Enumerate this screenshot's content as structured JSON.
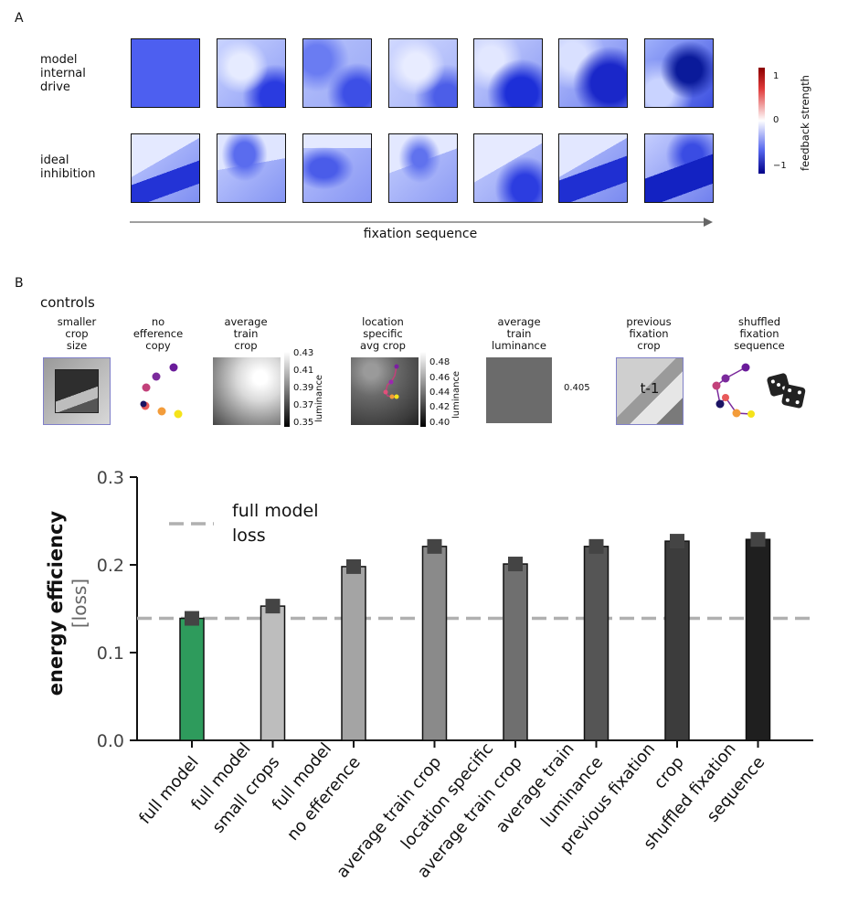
{
  "panel_a": {
    "letter": "A",
    "row1_label": [
      "model",
      "internal",
      "drive"
    ],
    "row2_label": [
      "ideal",
      "inhibition"
    ],
    "axis_label": "fixation sequence",
    "colorbar": {
      "label": "feedback strength",
      "ticks": [
        "1",
        "0",
        "−1"
      ]
    }
  },
  "panel_b": {
    "letter": "B",
    "controls_title": "controls",
    "controls": [
      {
        "title": [
          "smaller",
          "crop",
          "size"
        ]
      },
      {
        "title": [
          "no",
          "efference",
          "copy"
        ]
      },
      {
        "title": [
          "average",
          "train",
          "crop"
        ],
        "colorbar_ticks": [
          "0.43",
          "0.41",
          "0.39",
          "0.37",
          "0.35"
        ],
        "colorbar_label": "luminance"
      },
      {
        "title": [
          "location",
          "specific",
          "avg crop"
        ],
        "colorbar_ticks": [
          "0.48",
          "0.46",
          "0.44",
          "0.42",
          "0.40"
        ],
        "colorbar_label": "luminance"
      },
      {
        "title": [
          "average",
          "train",
          "luminance"
        ],
        "value": "0.405"
      },
      {
        "title": [
          "previous",
          "fixation",
          "crop"
        ],
        "overlay": "t-1"
      },
      {
        "title": [
          "shuffled",
          "fixation",
          "sequence"
        ]
      }
    ]
  },
  "chart_data": {
    "type": "bar",
    "ylabel": "energy efficiency",
    "ylabel_sub": "[loss]",
    "ylim": [
      0,
      0.3
    ],
    "yticks": [
      "0.0",
      "0.1",
      "0.2",
      "0.3"
    ],
    "categories": [
      [
        "full model"
      ],
      [
        "full model",
        "small crops"
      ],
      [
        "full model",
        "no efference"
      ],
      [
        "average train crop"
      ],
      [
        "location specific",
        "average train crop"
      ],
      [
        "average train",
        "luminance"
      ],
      [
        "previous fixation",
        "crop"
      ],
      [
        "shuffled fixation",
        "sequence"
      ]
    ],
    "values": [
      0.139,
      0.153,
      0.198,
      0.221,
      0.201,
      0.221,
      0.227,
      0.229
    ],
    "bar_colors": [
      "#2e9b5c",
      "#bdbdbd",
      "#a4a4a4",
      "#8a8a8a",
      "#6f6f6f",
      "#555555",
      "#3c3c3c",
      "#1f1f1f"
    ],
    "reference_line": {
      "value": 0.139,
      "label": [
        "full model",
        "loss"
      ],
      "color": "#b0b0b0"
    },
    "marker_color": "#444444",
    "grid": false
  }
}
